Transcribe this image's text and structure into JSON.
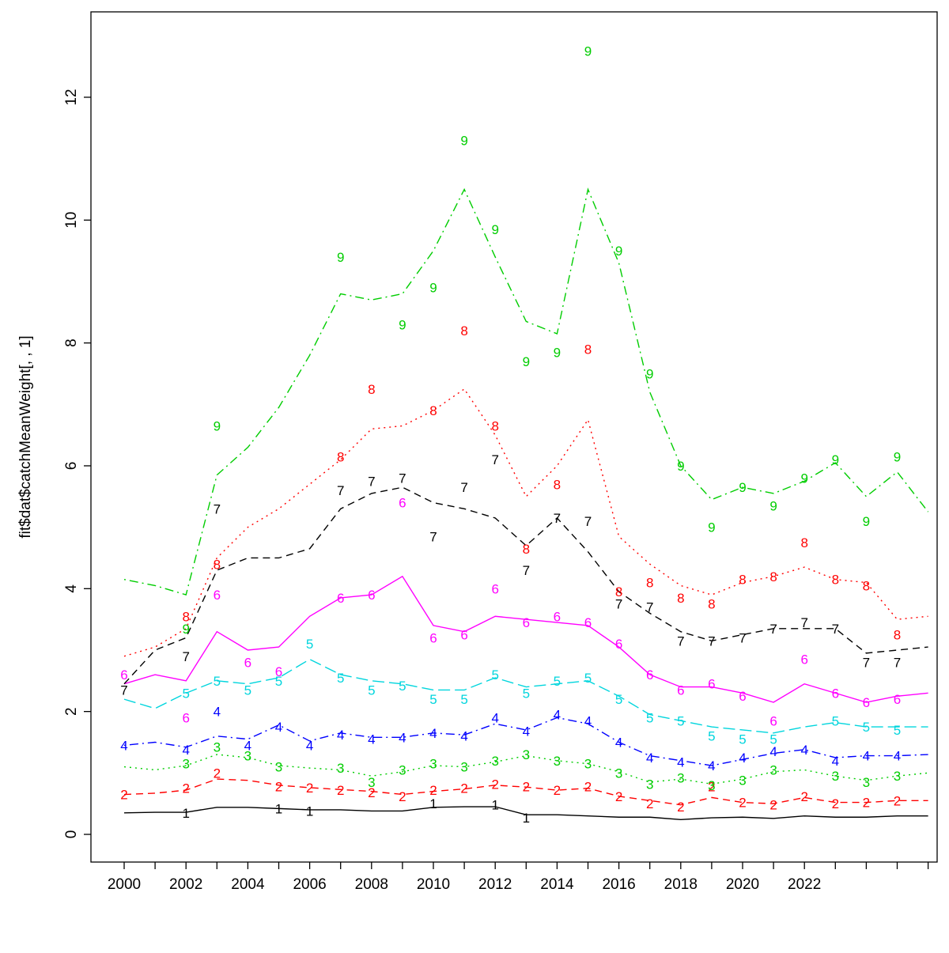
{
  "figure": {
    "background": "#ffffff",
    "box_color": "#000000"
  },
  "chart_data": {
    "type": "line",
    "title": "",
    "xlabel": "",
    "ylabel": "fit$dat$catchMeanWeight[, , 1]",
    "grid": false,
    "legend": "none",
    "x_years": [
      2000,
      2001,
      2002,
      2003,
      2004,
      2005,
      2006,
      2007,
      2008,
      2009,
      2010,
      2011,
      2012,
      2013,
      2014,
      2015,
      2016,
      2017,
      2018,
      2019,
      2020,
      2021,
      2022,
      2023,
      2024,
      2025,
      2026
    ],
    "x_label_years": [
      "2000",
      "2002",
      "2004",
      "2006",
      "2008",
      "2010",
      "2012",
      "2014",
      "2016",
      "2018",
      "2020",
      "2022"
    ],
    "x_label_values": [
      2000,
      2002,
      2004,
      2006,
      2008,
      2010,
      2012,
      2014,
      2016,
      2018,
      2020,
      2022
    ],
    "y_ticks": [
      "0",
      "2",
      "4",
      "6",
      "8",
      "10",
      "12"
    ],
    "y_tick_values": [
      0,
      2,
      4,
      6,
      8,
      10,
      12
    ],
    "ylim": [
      0,
      12.8
    ],
    "series": [
      {
        "name": "age-1",
        "label": "1",
        "color": "#000000",
        "linetype": "solid",
        "line": [
          0.35,
          0.36,
          0.36,
          0.44,
          0.44,
          0.42,
          0.4,
          0.4,
          0.38,
          0.38,
          0.44,
          0.45,
          0.45,
          0.32,
          0.32,
          0.3,
          0.28,
          0.28,
          0.24,
          0.27,
          0.28,
          0.26,
          0.3,
          0.28,
          0.28,
          0.3,
          0.3
        ],
        "points": [
          [
            2002,
            0.35
          ],
          [
            2005,
            0.42
          ],
          [
            2006,
            0.38
          ],
          [
            2010,
            0.5
          ],
          [
            2012,
            0.48
          ],
          [
            2013,
            0.27
          ]
        ]
      },
      {
        "name": "age-2",
        "label": "2",
        "color": "#FF0000",
        "linetype": "dashed",
        "line": [
          0.65,
          0.67,
          0.72,
          0.9,
          0.88,
          0.8,
          0.76,
          0.73,
          0.7,
          0.65,
          0.7,
          0.74,
          0.8,
          0.77,
          0.72,
          0.75,
          0.62,
          0.55,
          0.48,
          0.6,
          0.52,
          0.5,
          0.6,
          0.52,
          0.52,
          0.55,
          0.55
        ],
        "points": [
          [
            2000,
            0.65
          ],
          [
            2002,
            0.75
          ],
          [
            2003,
            1.0
          ],
          [
            2005,
            0.78
          ],
          [
            2006,
            0.76
          ],
          [
            2007,
            0.72
          ],
          [
            2008,
            0.68
          ],
          [
            2009,
            0.62
          ],
          [
            2010,
            0.72
          ],
          [
            2011,
            0.75
          ],
          [
            2012,
            0.82
          ],
          [
            2013,
            0.78
          ],
          [
            2014,
            0.72
          ],
          [
            2015,
            0.78
          ],
          [
            2016,
            0.62
          ],
          [
            2017,
            0.5
          ],
          [
            2018,
            0.45
          ],
          [
            2019,
            0.78
          ],
          [
            2020,
            0.52
          ],
          [
            2021,
            0.48
          ],
          [
            2022,
            0.62
          ],
          [
            2023,
            0.5
          ],
          [
            2024,
            0.52
          ],
          [
            2025,
            0.55
          ]
        ]
      },
      {
        "name": "age-3",
        "label": "3",
        "color": "#00CD00",
        "linetype": "dotted",
        "line": [
          1.1,
          1.05,
          1.12,
          1.3,
          1.25,
          1.12,
          1.08,
          1.05,
          0.95,
          1.02,
          1.12,
          1.1,
          1.18,
          1.28,
          1.2,
          1.15,
          1.02,
          0.85,
          0.9,
          0.82,
          0.9,
          1.02,
          1.05,
          0.95,
          0.88,
          0.95,
          1.0
        ],
        "points": [
          [
            2002,
            1.15
          ],
          [
            2003,
            1.42
          ],
          [
            2004,
            1.28
          ],
          [
            2005,
            1.1
          ],
          [
            2007,
            1.08
          ],
          [
            2008,
            0.85
          ],
          [
            2009,
            1.05
          ],
          [
            2010,
            1.15
          ],
          [
            2011,
            1.1
          ],
          [
            2012,
            1.2
          ],
          [
            2013,
            1.3
          ],
          [
            2014,
            1.2
          ],
          [
            2015,
            1.15
          ],
          [
            2016,
            1.0
          ],
          [
            2017,
            0.82
          ],
          [
            2018,
            0.92
          ],
          [
            2019,
            0.8
          ],
          [
            2020,
            0.88
          ],
          [
            2021,
            1.05
          ],
          [
            2023,
            0.95
          ],
          [
            2024,
            0.85
          ],
          [
            2025,
            0.95
          ]
        ]
      },
      {
        "name": "age-4",
        "label": "4",
        "color": "#0000FF",
        "linetype": "dotdash",
        "line": [
          1.45,
          1.5,
          1.42,
          1.6,
          1.55,
          1.78,
          1.52,
          1.65,
          1.58,
          1.58,
          1.65,
          1.62,
          1.8,
          1.7,
          1.9,
          1.8,
          1.5,
          1.28,
          1.2,
          1.12,
          1.22,
          1.32,
          1.38,
          1.25,
          1.28,
          1.28,
          1.3
        ],
        "points": [
          [
            2000,
            1.45
          ],
          [
            2002,
            1.38
          ],
          [
            2003,
            2.0
          ],
          [
            2004,
            1.45
          ],
          [
            2005,
            1.75
          ],
          [
            2006,
            1.45
          ],
          [
            2007,
            1.62
          ],
          [
            2008,
            1.55
          ],
          [
            2009,
            1.58
          ],
          [
            2010,
            1.65
          ],
          [
            2011,
            1.6
          ],
          [
            2012,
            1.9
          ],
          [
            2013,
            1.68
          ],
          [
            2014,
            1.95
          ],
          [
            2015,
            1.85
          ],
          [
            2016,
            1.5
          ],
          [
            2017,
            1.25
          ],
          [
            2018,
            1.18
          ],
          [
            2019,
            1.12
          ],
          [
            2020,
            1.25
          ],
          [
            2021,
            1.35
          ],
          [
            2022,
            1.38
          ],
          [
            2023,
            1.2
          ],
          [
            2024,
            1.28
          ],
          [
            2025,
            1.28
          ]
        ]
      },
      {
        "name": "age-5",
        "label": "5",
        "color": "#00D5DD",
        "linetype": "longdash",
        "line": [
          2.2,
          2.05,
          2.3,
          2.5,
          2.45,
          2.55,
          2.85,
          2.6,
          2.5,
          2.45,
          2.35,
          2.35,
          2.55,
          2.4,
          2.45,
          2.5,
          2.25,
          1.95,
          1.85,
          1.75,
          1.7,
          1.65,
          1.75,
          1.82,
          1.75,
          1.75,
          1.75
        ],
        "points": [
          [
            2002,
            2.3
          ],
          [
            2003,
            2.5
          ],
          [
            2004,
            2.35
          ],
          [
            2005,
            2.5
          ],
          [
            2006,
            3.1
          ],
          [
            2007,
            2.55
          ],
          [
            2008,
            2.35
          ],
          [
            2009,
            2.42
          ],
          [
            2010,
            2.2
          ],
          [
            2011,
            2.2
          ],
          [
            2012,
            2.6
          ],
          [
            2013,
            2.3
          ],
          [
            2014,
            2.5
          ],
          [
            2015,
            2.55
          ],
          [
            2016,
            2.2
          ],
          [
            2017,
            1.9
          ],
          [
            2018,
            1.85
          ],
          [
            2019,
            1.6
          ],
          [
            2020,
            1.55
          ],
          [
            2021,
            1.55
          ],
          [
            2023,
            1.85
          ],
          [
            2024,
            1.75
          ],
          [
            2025,
            1.7
          ]
        ]
      },
      {
        "name": "age-6",
        "label": "6",
        "color": "#FF00FF",
        "linetype": "solid",
        "line": [
          2.45,
          2.6,
          2.5,
          3.3,
          3.0,
          3.05,
          3.55,
          3.85,
          3.9,
          4.2,
          3.4,
          3.3,
          3.55,
          3.5,
          3.45,
          3.4,
          3.05,
          2.6,
          2.4,
          2.4,
          2.3,
          2.15,
          2.45,
          2.3,
          2.15,
          2.25,
          2.3
        ],
        "points": [
          [
            2000,
            2.6
          ],
          [
            2002,
            1.9
          ],
          [
            2003,
            3.9
          ],
          [
            2004,
            2.8
          ],
          [
            2005,
            2.65
          ],
          [
            2007,
            3.85
          ],
          [
            2008,
            3.9
          ],
          [
            2009,
            5.4
          ],
          [
            2010,
            3.2
          ],
          [
            2011,
            3.25
          ],
          [
            2012,
            4.0
          ],
          [
            2013,
            3.45
          ],
          [
            2014,
            3.55
          ],
          [
            2015,
            3.45
          ],
          [
            2016,
            3.1
          ],
          [
            2017,
            2.6
          ],
          [
            2018,
            2.35
          ],
          [
            2019,
            2.45
          ],
          [
            2020,
            2.25
          ],
          [
            2021,
            1.85
          ],
          [
            2022,
            2.85
          ],
          [
            2023,
            2.3
          ],
          [
            2024,
            2.15
          ],
          [
            2025,
            2.2
          ]
        ]
      },
      {
        "name": "age-7",
        "label": "7",
        "color": "#000000",
        "linetype": "dashed",
        "line": [
          2.45,
          3.0,
          3.2,
          4.3,
          4.5,
          4.5,
          4.65,
          5.3,
          5.55,
          5.65,
          5.4,
          5.3,
          5.15,
          4.7,
          5.15,
          4.6,
          3.95,
          3.6,
          3.3,
          3.15,
          3.25,
          3.35,
          3.35,
          3.35,
          2.95,
          3.0,
          3.05
        ],
        "points": [
          [
            2000,
            2.35
          ],
          [
            2002,
            2.9
          ],
          [
            2003,
            5.3
          ],
          [
            2007,
            5.6
          ],
          [
            2008,
            5.75
          ],
          [
            2009,
            5.8
          ],
          [
            2010,
            4.85
          ],
          [
            2011,
            5.65
          ],
          [
            2012,
            6.1
          ],
          [
            2013,
            4.3
          ],
          [
            2014,
            5.15
          ],
          [
            2015,
            5.1
          ],
          [
            2016,
            3.75
          ],
          [
            2017,
            3.7
          ],
          [
            2018,
            3.15
          ],
          [
            2019,
            3.15
          ],
          [
            2020,
            3.2
          ],
          [
            2021,
            3.35
          ],
          [
            2022,
            3.45
          ],
          [
            2023,
            3.35
          ],
          [
            2024,
            2.8
          ],
          [
            2025,
            2.8
          ]
        ]
      },
      {
        "name": "age-8",
        "label": "8",
        "color": "#FF0000",
        "linetype": "dotted",
        "line": [
          2.9,
          3.05,
          3.35,
          4.5,
          5.0,
          5.3,
          5.7,
          6.1,
          6.6,
          6.65,
          6.9,
          7.25,
          6.5,
          5.5,
          6.0,
          6.75,
          4.85,
          4.4,
          4.05,
          3.9,
          4.1,
          4.2,
          4.35,
          4.15,
          4.1,
          3.5,
          3.55
        ],
        "points": [
          [
            2002,
            3.55
          ],
          [
            2003,
            4.4
          ],
          [
            2007,
            6.15
          ],
          [
            2008,
            7.25
          ],
          [
            2010,
            6.9
          ],
          [
            2011,
            8.2
          ],
          [
            2012,
            6.65
          ],
          [
            2013,
            4.65
          ],
          [
            2014,
            5.7
          ],
          [
            2015,
            7.9
          ],
          [
            2016,
            3.95
          ],
          [
            2017,
            4.1
          ],
          [
            2018,
            3.85
          ],
          [
            2019,
            3.75
          ],
          [
            2020,
            4.15
          ],
          [
            2021,
            4.2
          ],
          [
            2022,
            4.75
          ],
          [
            2023,
            4.15
          ],
          [
            2024,
            4.05
          ],
          [
            2025,
            3.25
          ]
        ]
      },
      {
        "name": "age-9",
        "label": "9",
        "color": "#00CD00",
        "linetype": "dotdash",
        "line": [
          4.15,
          4.05,
          3.9,
          5.85,
          6.3,
          6.95,
          7.8,
          8.8,
          8.7,
          8.8,
          9.5,
          10.5,
          9.4,
          8.35,
          8.15,
          10.5,
          9.3,
          7.2,
          6.0,
          5.45,
          5.65,
          5.55,
          5.75,
          6.05,
          5.5,
          5.9,
          5.25
        ],
        "points": [
          [
            2002,
            3.35
          ],
          [
            2003,
            6.65
          ],
          [
            2007,
            9.4
          ],
          [
            2009,
            8.3
          ],
          [
            2010,
            8.9
          ],
          [
            2011,
            11.3
          ],
          [
            2012,
            9.85
          ],
          [
            2013,
            7.7
          ],
          [
            2014,
            7.85
          ],
          [
            2015,
            12.75
          ],
          [
            2016,
            9.5
          ],
          [
            2017,
            7.5
          ],
          [
            2018,
            6.0
          ],
          [
            2019,
            5.0
          ],
          [
            2020,
            5.65
          ],
          [
            2021,
            5.35
          ],
          [
            2022,
            5.8
          ],
          [
            2023,
            6.1
          ],
          [
            2024,
            5.1
          ],
          [
            2025,
            6.15
          ]
        ]
      }
    ]
  }
}
